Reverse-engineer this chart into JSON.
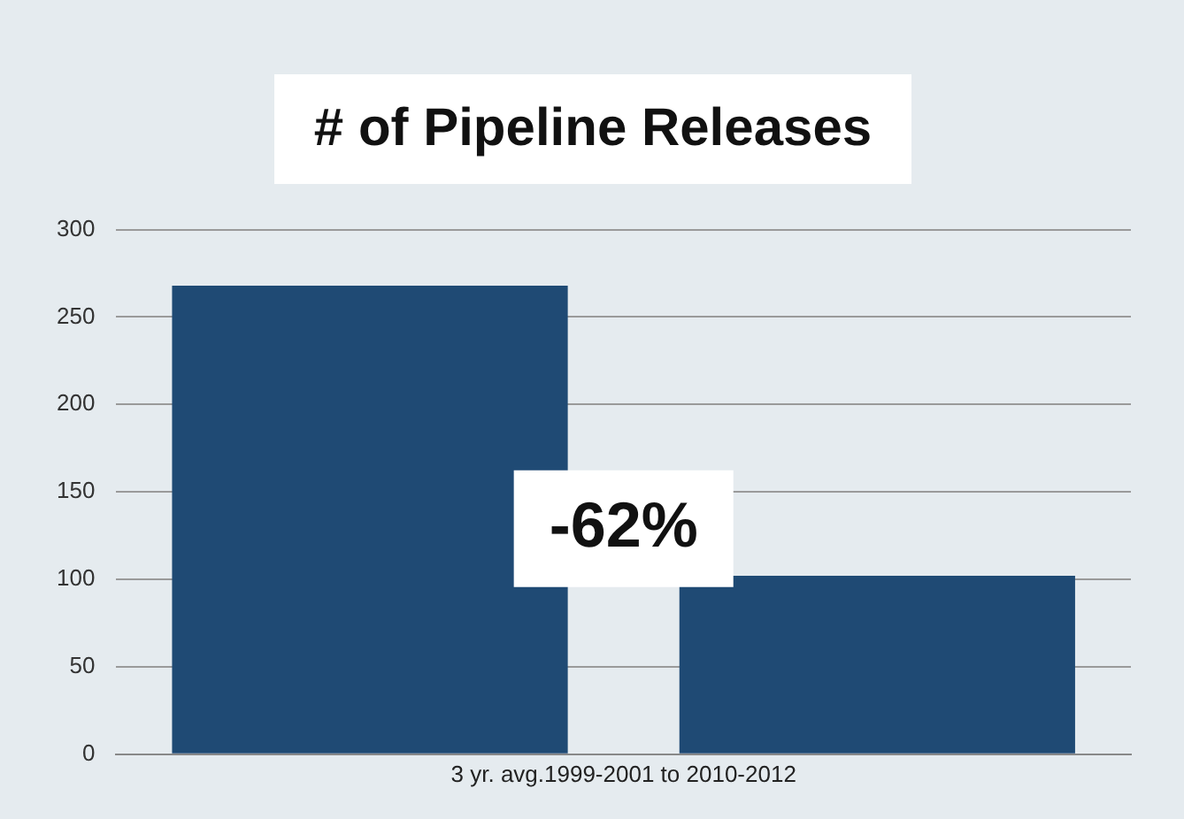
{
  "chart_data": {
    "type": "bar",
    "title": "# of Pipeline Releases",
    "xlabel": "3 yr. avg.1999-2001 to 2010-2012",
    "categories": [
      null,
      null
    ],
    "values": [
      268,
      102
    ],
    "color": "#1f4a74",
    "ylim": [
      0,
      300
    ],
    "yticks": [
      0,
      50,
      100,
      150,
      200,
      250,
      300
    ],
    "grid": "y",
    "annotations": [
      "-62%"
    ]
  }
}
